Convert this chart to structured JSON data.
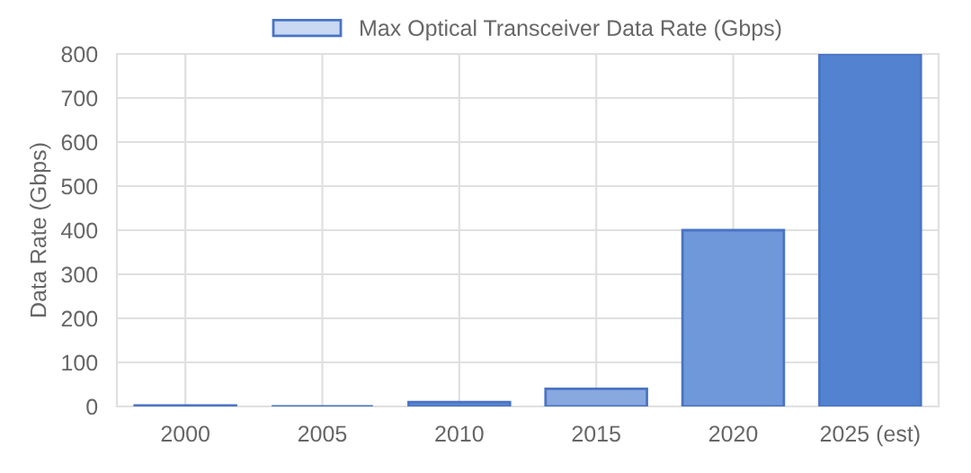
{
  "chart_data": {
    "type": "bar",
    "categories": [
      "2000",
      "2005",
      "2010",
      "2015",
      "2020",
      "2025 (est)"
    ],
    "series": [
      {
        "name": "Max Optical Transceiver Data Rate (Gbps)",
        "color": "#c9d8f3",
        "colors": [
          "#3f6fc4",
          "#3f6fc4",
          "#5a86d0",
          "#88a8e0",
          "#6f98da",
          "#5282d0"
        ],
        "values": [
          2.5,
          0,
          10,
          40,
          400,
          800
        ]
      }
    ],
    "ylabel": "Data Rate (Gbps)",
    "ylim": [
      0,
      800
    ],
    "yticks": [
      0,
      100,
      200,
      300,
      400,
      500,
      600,
      700,
      800
    ],
    "grid": true,
    "legend": "top"
  }
}
